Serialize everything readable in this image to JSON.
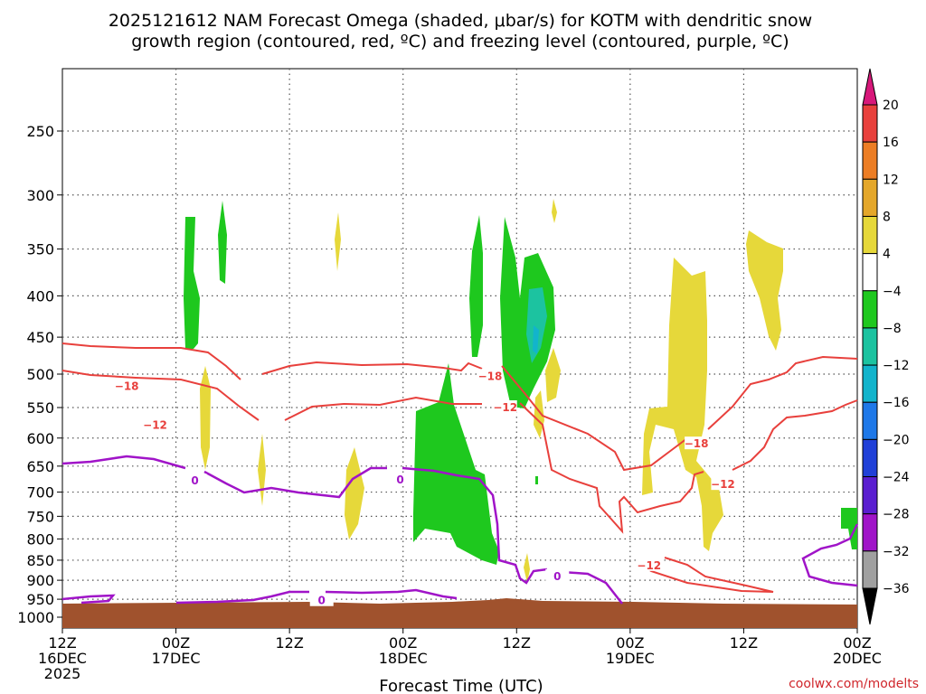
{
  "chart_data": {
    "type": "time-height",
    "title_line1": "2025121612 NAM Forecast Omega (shaded, μbar/s) for KOTM with dendritic snow",
    "title_line2": "growth region (contoured, red, ºC) and freezing level (contoured, purple, ºC)",
    "xlabel": "Forecast Time (UTC)",
    "xlim_hours": [
      0,
      84
    ],
    "ylim_hpa": [
      1000,
      200
    ],
    "y_ticks": [
      {
        "label": "250",
        "value": 250
      },
      {
        "label": "300",
        "value": 300
      },
      {
        "label": "350",
        "value": 350
      },
      {
        "label": "400",
        "value": 400
      },
      {
        "label": "450",
        "value": 450
      },
      {
        "label": "500",
        "value": 500
      },
      {
        "label": "550",
        "value": 550
      },
      {
        "label": "600",
        "value": 600
      },
      {
        "label": "650",
        "value": 650
      },
      {
        "label": "700",
        "value": 700
      },
      {
        "label": "750",
        "value": 750
      },
      {
        "label": "800",
        "value": 800
      },
      {
        "label": "850",
        "value": 850
      },
      {
        "label": "900",
        "value": 900
      },
      {
        "label": "950",
        "value": 950
      },
      {
        "label": "1000",
        "value": 1000
      }
    ],
    "x_ticks": [
      {
        "hour": 0,
        "lines": [
          "12Z",
          "16DEC",
          "2025"
        ]
      },
      {
        "hour": 12,
        "lines": [
          "00Z",
          "17DEC"
        ]
      },
      {
        "hour": 24,
        "lines": [
          "12Z"
        ]
      },
      {
        "hour": 36,
        "lines": [
          "00Z",
          "18DEC"
        ]
      },
      {
        "hour": 48,
        "lines": [
          "12Z"
        ]
      },
      {
        "hour": 60,
        "lines": [
          "00Z",
          "19DEC"
        ]
      },
      {
        "hour": 72,
        "lines": [
          "12Z"
        ]
      },
      {
        "hour": 84,
        "lines": [
          "00Z",
          "20DEC"
        ]
      }
    ],
    "colorbar": {
      "labels": [
        "20",
        "16",
        "12",
        "8",
        "4",
        "−4",
        "−8",
        "−12",
        "−16",
        "−20",
        "−24",
        "−28",
        "−32",
        "−36"
      ],
      "bins": [
        "#d7187a",
        "#e8403c",
        "#ec7d24",
        "#e4a72a",
        "#e6d83a",
        "#ffffff",
        "#1ec81e",
        "#1cc3a0",
        "#12b4cc",
        "#1e78e8",
        "#2040d8",
        "#5a1ed0",
        "#a014c8",
        "#a0a0a0",
        "#000000"
      ]
    },
    "contours": {
      "dgz_red": [
        {
          "label": "−18",
          "hour": 6.8,
          "p": 518
        },
        {
          "label": "−12",
          "hour": 9.8,
          "p": 578
        },
        {
          "label": "−18",
          "hour": 45.2,
          "p": 503
        },
        {
          "label": "−12",
          "hour": 46.8,
          "p": 550
        },
        {
          "label": "−18",
          "hour": 67.0,
          "p": 610
        },
        {
          "label": "−12",
          "hour": 69.8,
          "p": 685
        },
        {
          "label": "−12",
          "hour": 62.0,
          "p": 863
        }
      ],
      "freezing_purple": [
        {
          "label": "0",
          "hour": 14.0,
          "p": 678
        },
        {
          "label": "0",
          "hour": 35.7,
          "p": 676
        },
        {
          "label": "0",
          "hour": 52.3,
          "p": 890
        },
        {
          "label": "0",
          "hour": 27.4,
          "p": 954
        }
      ]
    },
    "credit": "coolwx.com/modelts"
  }
}
